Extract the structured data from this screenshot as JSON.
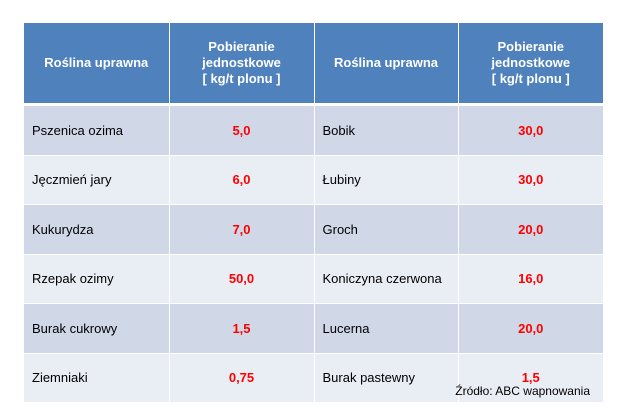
{
  "table": {
    "headers": {
      "crop1": "Roślina uprawna",
      "uptake1": [
        "Pobieranie",
        "jednostkowe",
        "[ kg/t plonu ]"
      ],
      "crop2": "Roślina uprawna",
      "uptake2": [
        "Pobieranie",
        "jednostkowe",
        "[ kg/t plonu ]"
      ]
    },
    "rows": [
      {
        "crop1": "Pszenica ozima",
        "value1": "5,0",
        "crop2": "Bobik",
        "value2": "30,0"
      },
      {
        "crop1": "Jęczmień jary",
        "value1": "6,0",
        "crop2": "Łubiny",
        "value2": "30,0"
      },
      {
        "crop1": "Kukurydza",
        "value1": "7,0",
        "crop2": "Groch",
        "value2": "20,0"
      },
      {
        "crop1": "Rzepak ozimy",
        "value1": "50,0",
        "crop2": "Koniczyna czerwona",
        "value2": "16,0"
      },
      {
        "crop1": "Burak cukrowy",
        "value1": "1,5",
        "crop2": "Lucerna",
        "value2": "20,0"
      },
      {
        "crop1": "Ziemniaki",
        "value1": "0,75",
        "crop2": "Burak pastewny",
        "value2": "1,5"
      }
    ]
  },
  "source": "Źródło: ABC wapnowania",
  "colors": {
    "header_bg": "#4f81bd",
    "row_dark": "#d0d8e8",
    "row_light": "#e9edf4",
    "value_text": "#ff0000"
  }
}
